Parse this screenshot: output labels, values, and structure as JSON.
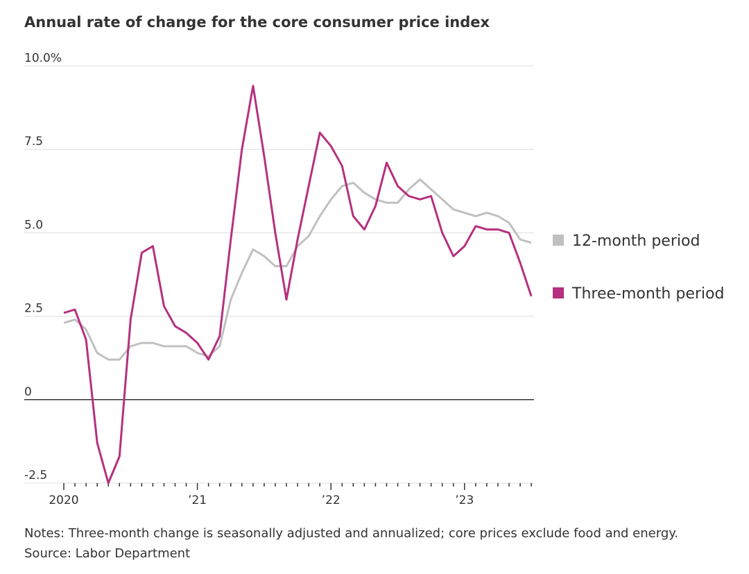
{
  "chart_data": {
    "type": "line",
    "title": "Annual rate of change for the core consumer price index",
    "categories": [
      "2020",
      null,
      null,
      null,
      null,
      null,
      null,
      null,
      null,
      null,
      null,
      null,
      "’21",
      null,
      null,
      null,
      null,
      null,
      null,
      null,
      null,
      null,
      null,
      null,
      "’22",
      null,
      null,
      null,
      null,
      null,
      null,
      null,
      null,
      null,
      null,
      null,
      "’23",
      null,
      null,
      null,
      null,
      null,
      null
    ],
    "series": [
      {
        "name": "12-month period",
        "color": "#c0c0c0",
        "values": [
          2.3,
          2.4,
          2.1,
          1.4,
          1.2,
          1.2,
          1.6,
          1.7,
          1.7,
          1.6,
          1.6,
          1.6,
          1.4,
          1.3,
          1.6,
          3.0,
          3.8,
          4.5,
          4.3,
          4.0,
          4.0,
          4.6,
          4.9,
          5.5,
          6.0,
          6.4,
          6.5,
          6.2,
          6.0,
          5.9,
          5.9,
          6.3,
          6.6,
          6.3,
          6.0,
          5.7,
          5.6,
          5.5,
          5.6,
          5.5,
          5.3,
          4.8,
          4.7
        ]
      },
      {
        "name": "Three-month period",
        "color": "#b5307f",
        "values": [
          2.6,
          2.7,
          1.8,
          -1.3,
          -2.5,
          -1.7,
          2.4,
          4.4,
          4.6,
          2.8,
          2.2,
          2.0,
          1.7,
          1.2,
          1.9,
          4.8,
          7.5,
          9.4,
          7.3,
          5.0,
          3.0,
          4.8,
          6.4,
          8.0,
          7.6,
          7.0,
          5.5,
          5.1,
          5.8,
          7.1,
          6.4,
          6.1,
          6.0,
          6.1,
          5.0,
          4.3,
          4.6,
          5.2,
          5.1,
          5.1,
          5.0,
          4.1,
          3.1
        ]
      }
    ],
    "ylim": [
      -2.5,
      10
    ],
    "yticks": [
      -2.5,
      0,
      {
        "value": 2.5,
        "label": "2.5"
      },
      {
        "value": 5,
        "label": "5.0"
      },
      7.5,
      {
        "value": 10,
        "label": "10.0%"
      }
    ],
    "grid": true,
    "legend": "right",
    "notes": "Notes: Three-month change is seasonally adjusted and annualized; core prices exclude food and energy.",
    "source": "Source: Labor Department"
  }
}
